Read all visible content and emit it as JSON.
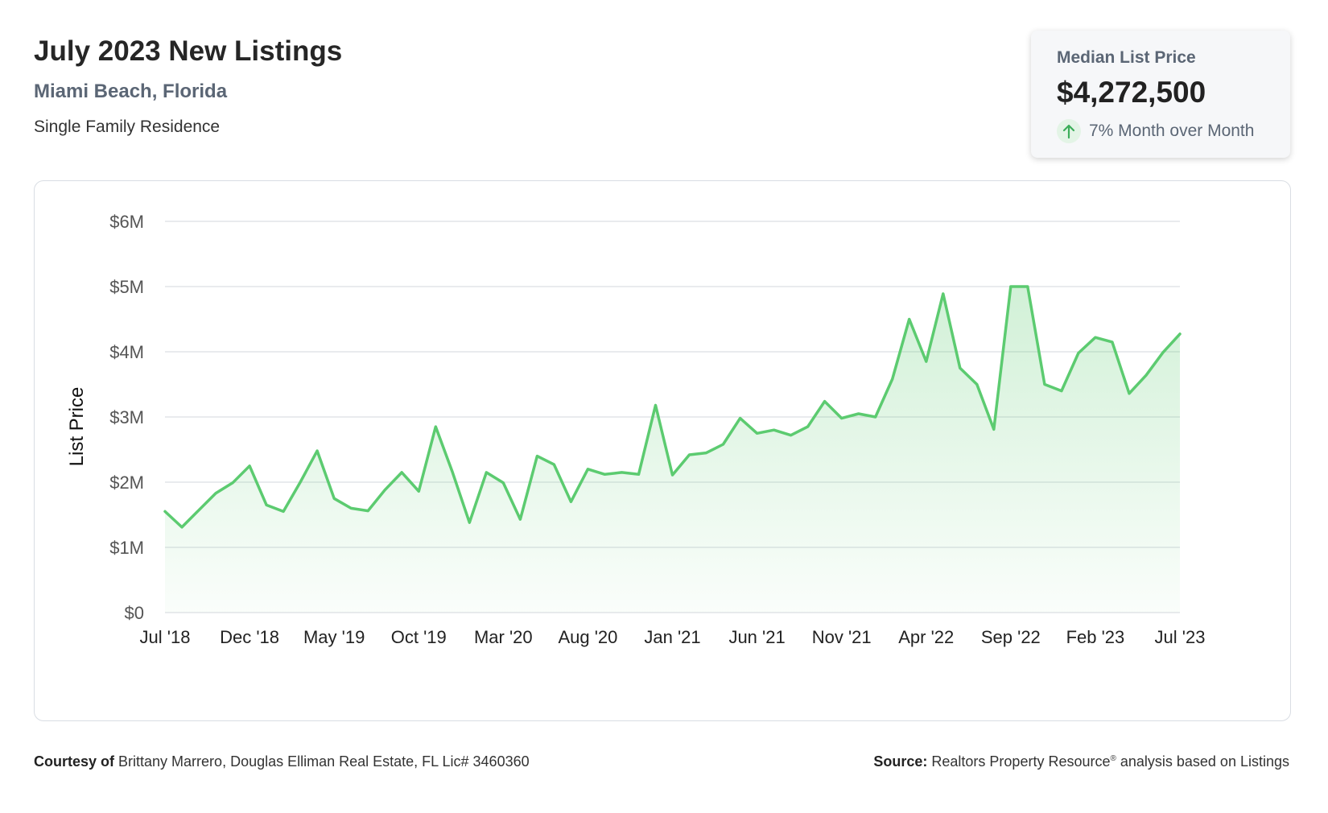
{
  "header": {
    "title": "July 2023 New Listings",
    "location": "Miami Beach, Florida",
    "property_type": "Single Family Residence"
  },
  "summary_card": {
    "label": "Median List Price",
    "value": "$4,272,500",
    "change_text": "7% Month over Month",
    "change_icon": "arrow-up-icon",
    "change_color": "#3cae5a"
  },
  "colors": {
    "line": "#5ccb70",
    "fill_top": "#5ccb70",
    "grid": "#dcdfe4",
    "axis_text": "#555555"
  },
  "chart_data": {
    "type": "area",
    "title": "",
    "xlabel": "",
    "ylabel": "List Price",
    "ylim": [
      0,
      6000000
    ],
    "y_ticks": [
      0,
      1000000,
      2000000,
      3000000,
      4000000,
      5000000,
      6000000
    ],
    "y_tick_labels": [
      "$0",
      "$1M",
      "$2M",
      "$3M",
      "$4M",
      "$5M",
      "$6M"
    ],
    "x_tick_labels": [
      "Jul '18",
      "Dec '18",
      "May '19",
      "Oct '19",
      "Mar '20",
      "Aug '20",
      "Jan '21",
      "Jun '21",
      "Nov '21",
      "Apr '22",
      "Sep '22",
      "Feb '23",
      "Jul '23"
    ],
    "x_tick_every": 5,
    "grid": true,
    "series": [
      {
        "name": "Median List Price",
        "start": "Jul '18",
        "end": "Jul '23",
        "values": [
          1550000,
          1310000,
          1570000,
          1830000,
          1990000,
          2250000,
          1650000,
          1550000,
          2000000,
          2480000,
          1750000,
          1600000,
          1560000,
          1880000,
          2150000,
          1860000,
          2850000,
          2150000,
          1380000,
          2150000,
          1990000,
          1430000,
          2400000,
          2270000,
          1700000,
          2200000,
          2120000,
          2150000,
          2120000,
          3180000,
          2110000,
          2420000,
          2450000,
          2580000,
          2980000,
          2750000,
          2800000,
          2720000,
          2850000,
          3240000,
          2980000,
          3050000,
          3000000,
          3580000,
          4500000,
          3850000,
          4890000,
          3750000,
          3500000,
          2810000,
          5000000,
          5000000,
          3500000,
          3400000,
          3980000,
          4220000,
          4150000,
          3360000,
          3640000,
          3990000,
          4272500
        ]
      }
    ]
  },
  "footer": {
    "courtesy_label": "Courtesy of",
    "courtesy_text": "Brittany Marrero, Douglas Elliman Real Estate, FL Lic# 3460360",
    "source_label": "Source:",
    "source_text_1": "Realtors Property Resource",
    "source_reg": "®",
    "source_text_2": " analysis based on Listings"
  }
}
